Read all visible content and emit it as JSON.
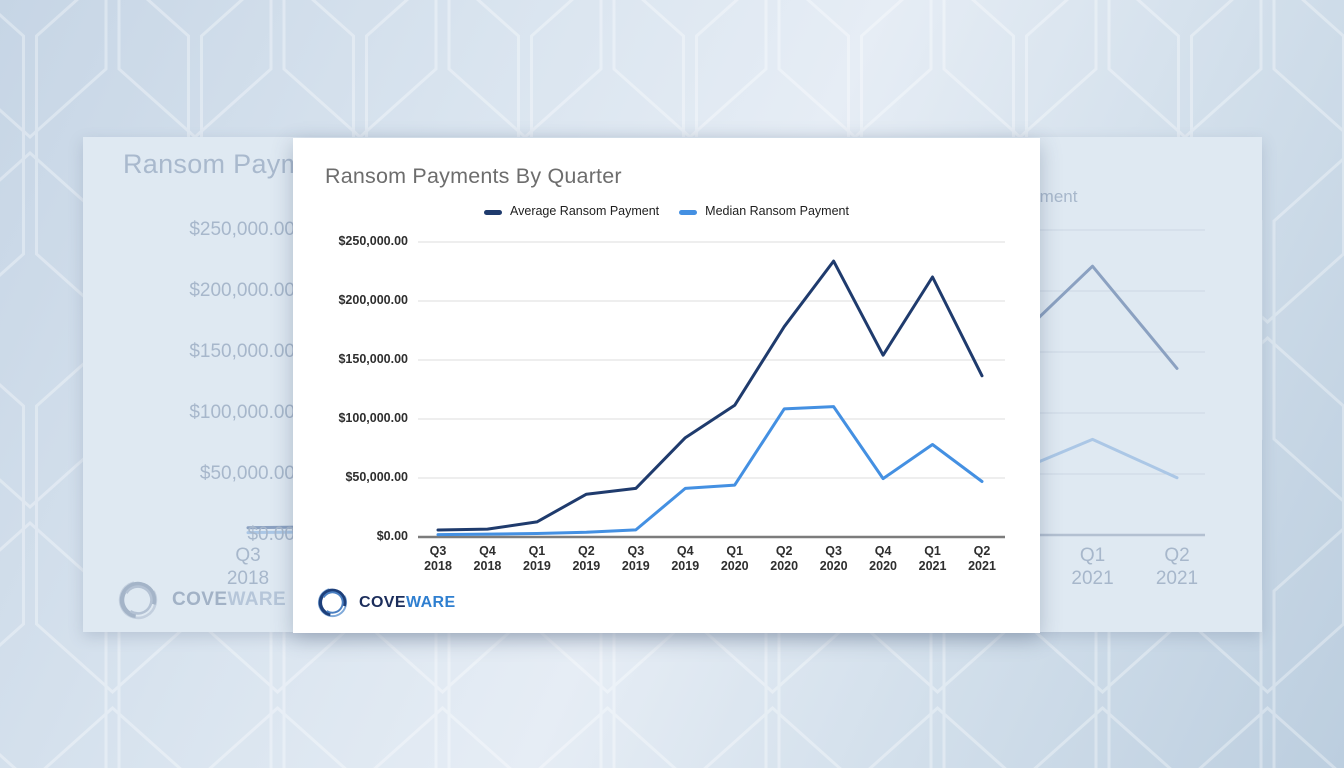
{
  "chart_data": {
    "type": "line",
    "title": "Ransom Payments By Quarter",
    "categories": [
      {
        "quarter": "Q3",
        "year": "2018"
      },
      {
        "quarter": "Q4",
        "year": "2018"
      },
      {
        "quarter": "Q1",
        "year": "2019"
      },
      {
        "quarter": "Q2",
        "year": "2019"
      },
      {
        "quarter": "Q3",
        "year": "2019"
      },
      {
        "quarter": "Q4",
        "year": "2019"
      },
      {
        "quarter": "Q1",
        "year": "2020"
      },
      {
        "quarter": "Q2",
        "year": "2020"
      },
      {
        "quarter": "Q3",
        "year": "2020"
      },
      {
        "quarter": "Q4",
        "year": "2020"
      },
      {
        "quarter": "Q1",
        "year": "2021"
      },
      {
        "quarter": "Q2",
        "year": "2021"
      }
    ],
    "series": [
      {
        "name": "Average Ransom Payment",
        "color": "#1f3b6d",
        "values": [
          5973,
          6733,
          12762,
          36295,
          41198,
          84116,
          111605,
          178254,
          233817,
          154108,
          220298,
          136576
        ]
      },
      {
        "name": "Median Ransom Payment",
        "color": "#4490e2",
        "values": [
          2000,
          2500,
          3000,
          4000,
          6000,
          41179,
          44021,
          108597,
          110532,
          49450,
          78398,
          47008
        ]
      }
    ],
    "y_ticks": [
      "$250,000.00",
      "$200,000.00",
      "$150,000.00",
      "$100,000.00",
      "$50,000.00",
      "$0.00"
    ],
    "ylim": [
      0,
      250000
    ],
    "grid": true,
    "legend_position": "top-center"
  },
  "logo": {
    "cove": "COVE",
    "ware": "WARE"
  }
}
